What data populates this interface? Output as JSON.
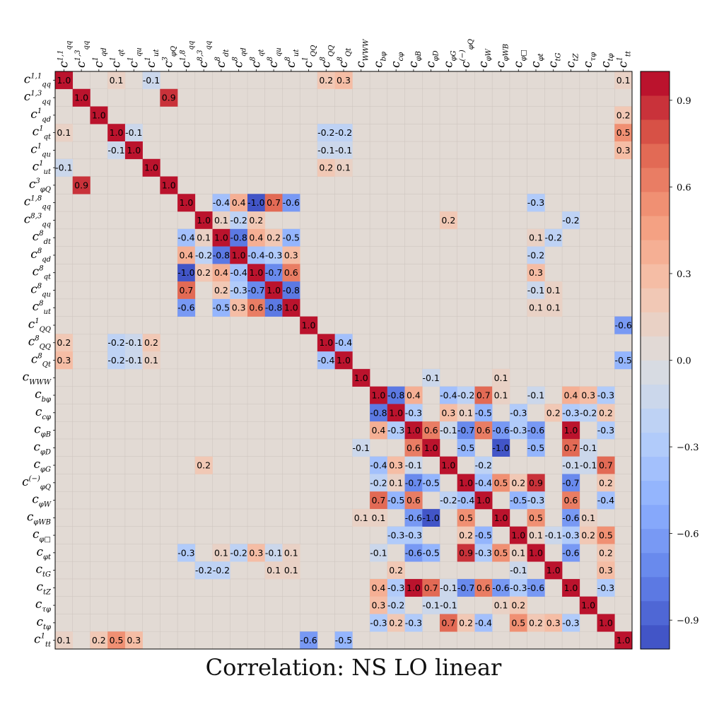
{
  "chart_data": {
    "type": "heatmap",
    "title": "Correlation: NS  LO linear",
    "labels": [
      {
        "base": "c",
        "sub": "qq",
        "sup": "1,1"
      },
      {
        "base": "c",
        "sub": "qq",
        "sup": "1,3"
      },
      {
        "base": "c",
        "sub": "qd",
        "sup": "1"
      },
      {
        "base": "c",
        "sub": "qt",
        "sup": "1"
      },
      {
        "base": "c",
        "sub": "qu",
        "sup": "1"
      },
      {
        "base": "c",
        "sub": "ut",
        "sup": "1"
      },
      {
        "base": "c",
        "sub": "φQ",
        "sup": "3"
      },
      {
        "base": "c",
        "sub": "qq",
        "sup": "1,8"
      },
      {
        "base": "c",
        "sub": "qq",
        "sup": "8,3"
      },
      {
        "base": "c",
        "sub": "dt",
        "sup": "8"
      },
      {
        "base": "c",
        "sub": "qd",
        "sup": "8"
      },
      {
        "base": "c",
        "sub": "qt",
        "sup": "8"
      },
      {
        "base": "c",
        "sub": "qu",
        "sup": "8"
      },
      {
        "base": "c",
        "sub": "ut",
        "sup": "8"
      },
      {
        "base": "c",
        "sub": "QQ",
        "sup": "1"
      },
      {
        "base": "c",
        "sub": "QQ",
        "sup": "8"
      },
      {
        "base": "c",
        "sub": "Qt",
        "sup": "8"
      },
      {
        "base": "c",
        "sub": "WWW",
        "sup": ""
      },
      {
        "base": "c",
        "sub": "bφ",
        "sup": ""
      },
      {
        "base": "c",
        "sub": "cφ",
        "sup": ""
      },
      {
        "base": "c",
        "sub": "φB",
        "sup": ""
      },
      {
        "base": "c",
        "sub": "φD",
        "sup": ""
      },
      {
        "base": "c",
        "sub": "φG",
        "sup": ""
      },
      {
        "base": "c",
        "sub": "φQ",
        "sup": "(−)"
      },
      {
        "base": "c",
        "sub": "φW",
        "sup": ""
      },
      {
        "base": "c",
        "sub": "φWB",
        "sup": ""
      },
      {
        "base": "c",
        "sub": "φ□",
        "sup": ""
      },
      {
        "base": "c",
        "sub": "φt",
        "sup": ""
      },
      {
        "base": "c",
        "sub": "tG",
        "sup": ""
      },
      {
        "base": "c",
        "sub": "tZ",
        "sup": ""
      },
      {
        "base": "c",
        "sub": "τφ",
        "sup": ""
      },
      {
        "base": "c",
        "sub": "tφ",
        "sup": ""
      },
      {
        "base": "c",
        "sub": "tt",
        "sup": "1"
      }
    ],
    "entries": [
      [
        0,
        0,
        1.0
      ],
      [
        0,
        3,
        0.1
      ],
      [
        0,
        5,
        -0.1
      ],
      [
        0,
        15,
        0.2
      ],
      [
        0,
        16,
        0.3
      ],
      [
        0,
        32,
        0.1
      ],
      [
        1,
        1,
        1.0
      ],
      [
        1,
        6,
        0.9
      ],
      [
        2,
        2,
        1.0
      ],
      [
        2,
        32,
        0.2
      ],
      [
        3,
        0,
        0.1
      ],
      [
        3,
        3,
        1.0
      ],
      [
        3,
        4,
        -0.1
      ],
      [
        3,
        15,
        -0.2
      ],
      [
        3,
        16,
        -0.2
      ],
      [
        3,
        32,
        0.5
      ],
      [
        4,
        3,
        -0.1
      ],
      [
        4,
        4,
        1.0
      ],
      [
        4,
        15,
        -0.1
      ],
      [
        4,
        16,
        -0.1
      ],
      [
        4,
        32,
        0.3
      ],
      [
        5,
        0,
        -0.1
      ],
      [
        5,
        5,
        1.0
      ],
      [
        5,
        15,
        0.2
      ],
      [
        5,
        16,
        0.1
      ],
      [
        6,
        1,
        0.9
      ],
      [
        6,
        6,
        1.0
      ],
      [
        7,
        7,
        1.0
      ],
      [
        7,
        9,
        -0.4
      ],
      [
        7,
        10,
        0.4
      ],
      [
        7,
        11,
        -1.0
      ],
      [
        7,
        12,
        0.7
      ],
      [
        7,
        13,
        -0.6
      ],
      [
        7,
        27,
        -0.3
      ],
      [
        8,
        8,
        1.0
      ],
      [
        8,
        9,
        0.1
      ],
      [
        8,
        10,
        -0.2
      ],
      [
        8,
        11,
        0.2
      ],
      [
        8,
        22,
        0.2
      ],
      [
        8,
        29,
        -0.2
      ],
      [
        9,
        7,
        -0.4
      ],
      [
        9,
        8,
        0.1
      ],
      [
        9,
        9,
        1.0
      ],
      [
        9,
        10,
        -0.8
      ],
      [
        9,
        11,
        0.4
      ],
      [
        9,
        12,
        0.2
      ],
      [
        9,
        13,
        -0.5
      ],
      [
        9,
        27,
        0.1
      ],
      [
        9,
        28,
        -0.2
      ],
      [
        10,
        7,
        0.4
      ],
      [
        10,
        8,
        -0.2
      ],
      [
        10,
        9,
        -0.8
      ],
      [
        10,
        10,
        1.0
      ],
      [
        10,
        11,
        -0.4
      ],
      [
        10,
        12,
        -0.3
      ],
      [
        10,
        13,
        0.3
      ],
      [
        10,
        27,
        -0.2
      ],
      [
        11,
        7,
        -1.0
      ],
      [
        11,
        8,
        0.2
      ],
      [
        11,
        9,
        0.4
      ],
      [
        11,
        10,
        -0.4
      ],
      [
        11,
        11,
        1.0
      ],
      [
        11,
        12,
        -0.7
      ],
      [
        11,
        13,
        0.6
      ],
      [
        11,
        27,
        0.3
      ],
      [
        12,
        7,
        0.7
      ],
      [
        12,
        9,
        0.2
      ],
      [
        12,
        10,
        -0.3
      ],
      [
        12,
        11,
        -0.7
      ],
      [
        12,
        12,
        1.0
      ],
      [
        12,
        13,
        -0.8
      ],
      [
        12,
        27,
        -0.1
      ],
      [
        12,
        28,
        0.1
      ],
      [
        13,
        7,
        -0.6
      ],
      [
        13,
        9,
        -0.5
      ],
      [
        13,
        10,
        0.3
      ],
      [
        13,
        11,
        0.6
      ],
      [
        13,
        12,
        -0.8
      ],
      [
        13,
        13,
        1.0
      ],
      [
        13,
        27,
        0.1
      ],
      [
        13,
        28,
        0.1
      ],
      [
        14,
        14,
        1.0
      ],
      [
        14,
        32,
        -0.6
      ],
      [
        15,
        0,
        0.2
      ],
      [
        15,
        3,
        -0.2
      ],
      [
        15,
        4,
        -0.1
      ],
      [
        15,
        5,
        0.2
      ],
      [
        15,
        15,
        1.0
      ],
      [
        15,
        16,
        -0.4
      ],
      [
        16,
        0,
        0.3
      ],
      [
        16,
        3,
        -0.2
      ],
      [
        16,
        4,
        -0.1
      ],
      [
        16,
        5,
        0.1
      ],
      [
        16,
        15,
        -0.4
      ],
      [
        16,
        16,
        1.0
      ],
      [
        16,
        32,
        -0.5
      ],
      [
        17,
        17,
        1.0
      ],
      [
        17,
        21,
        -0.1
      ],
      [
        17,
        25,
        0.1
      ],
      [
        18,
        18,
        1.0
      ],
      [
        18,
        19,
        -0.8
      ],
      [
        18,
        20,
        0.4
      ],
      [
        18,
        22,
        -0.4
      ],
      [
        18,
        23,
        -0.2
      ],
      [
        18,
        24,
        0.7
      ],
      [
        18,
        25,
        0.1
      ],
      [
        18,
        27,
        -0.1
      ],
      [
        18,
        29,
        0.4
      ],
      [
        18,
        30,
        0.3
      ],
      [
        18,
        31,
        -0.3
      ],
      [
        19,
        18,
        -0.8
      ],
      [
        19,
        19,
        1.0
      ],
      [
        19,
        20,
        -0.3
      ],
      [
        19,
        22,
        0.3
      ],
      [
        19,
        23,
        0.1
      ],
      [
        19,
        24,
        -0.5
      ],
      [
        19,
        26,
        -0.3
      ],
      [
        19,
        28,
        0.2
      ],
      [
        19,
        29,
        -0.3
      ],
      [
        19,
        30,
        -0.2
      ],
      [
        19,
        31,
        0.2
      ],
      [
        20,
        18,
        0.4
      ],
      [
        20,
        19,
        -0.3
      ],
      [
        20,
        20,
        1.0
      ],
      [
        20,
        21,
        0.6
      ],
      [
        20,
        22,
        -0.1
      ],
      [
        20,
        23,
        -0.7
      ],
      [
        20,
        24,
        0.6
      ],
      [
        20,
        25,
        -0.6
      ],
      [
        20,
        26,
        -0.3
      ],
      [
        20,
        27,
        -0.6
      ],
      [
        20,
        29,
        1.0
      ],
      [
        20,
        31,
        -0.3
      ],
      [
        21,
        17,
        -0.1
      ],
      [
        21,
        20,
        0.6
      ],
      [
        21,
        21,
        1.0
      ],
      [
        21,
        23,
        -0.5
      ],
      [
        21,
        25,
        -1.0
      ],
      [
        21,
        27,
        -0.5
      ],
      [
        21,
        29,
        0.7
      ],
      [
        21,
        30,
        -0.1
      ],
      [
        22,
        8,
        0.2
      ],
      [
        22,
        18,
        -0.4
      ],
      [
        22,
        19,
        0.3
      ],
      [
        22,
        20,
        -0.1
      ],
      [
        22,
        22,
        1.0
      ],
      [
        22,
        24,
        -0.2
      ],
      [
        22,
        29,
        -0.1
      ],
      [
        22,
        30,
        -0.1
      ],
      [
        22,
        31,
        0.7
      ],
      [
        23,
        18,
        -0.2
      ],
      [
        23,
        19,
        0.1
      ],
      [
        23,
        20,
        -0.7
      ],
      [
        23,
        21,
        -0.5
      ],
      [
        23,
        23,
        1.0
      ],
      [
        23,
        24,
        -0.4
      ],
      [
        23,
        25,
        0.5
      ],
      [
        23,
        26,
        0.2
      ],
      [
        23,
        27,
        0.9
      ],
      [
        23,
        29,
        -0.7
      ],
      [
        23,
        31,
        0.2
      ],
      [
        24,
        18,
        0.7
      ],
      [
        24,
        19,
        -0.5
      ],
      [
        24,
        20,
        0.6
      ],
      [
        24,
        22,
        -0.2
      ],
      [
        24,
        23,
        -0.4
      ],
      [
        24,
        24,
        1.0
      ],
      [
        24,
        26,
        -0.5
      ],
      [
        24,
        27,
        -0.3
      ],
      [
        24,
        29,
        0.6
      ],
      [
        24,
        31,
        -0.4
      ],
      [
        25,
        17,
        0.1
      ],
      [
        25,
        18,
        0.1
      ],
      [
        25,
        20,
        -0.6
      ],
      [
        25,
        21,
        -1.0
      ],
      [
        25,
        23,
        0.5
      ],
      [
        25,
        25,
        1.0
      ],
      [
        25,
        27,
        0.5
      ],
      [
        25,
        29,
        -0.6
      ],
      [
        25,
        30,
        0.1
      ],
      [
        26,
        19,
        -0.3
      ],
      [
        26,
        20,
        -0.3
      ],
      [
        26,
        23,
        0.2
      ],
      [
        26,
        24,
        -0.5
      ],
      [
        26,
        26,
        1.0
      ],
      [
        26,
        27,
        0.1
      ],
      [
        26,
        28,
        -0.1
      ],
      [
        26,
        29,
        -0.3
      ],
      [
        26,
        30,
        0.2
      ],
      [
        26,
        31,
        0.5
      ],
      [
        27,
        7,
        -0.3
      ],
      [
        27,
        9,
        0.1
      ],
      [
        27,
        10,
        -0.2
      ],
      [
        27,
        11,
        0.3
      ],
      [
        27,
        12,
        -0.1
      ],
      [
        27,
        13,
        0.1
      ],
      [
        27,
        18,
        -0.1
      ],
      [
        27,
        20,
        -0.6
      ],
      [
        27,
        21,
        -0.5
      ],
      [
        27,
        23,
        0.9
      ],
      [
        27,
        24,
        -0.3
      ],
      [
        27,
        25,
        0.5
      ],
      [
        27,
        26,
        0.1
      ],
      [
        27,
        27,
        1.0
      ],
      [
        27,
        29,
        -0.6
      ],
      [
        27,
        31,
        0.2
      ],
      [
        28,
        8,
        -0.2
      ],
      [
        28,
        9,
        -0.2
      ],
      [
        28,
        12,
        0.1
      ],
      [
        28,
        13,
        0.1
      ],
      [
        28,
        19,
        0.2
      ],
      [
        28,
        26,
        -0.1
      ],
      [
        28,
        28,
        1.0
      ],
      [
        28,
        31,
        0.3
      ],
      [
        29,
        18,
        0.4
      ],
      [
        29,
        19,
        -0.3
      ],
      [
        29,
        20,
        1.0
      ],
      [
        29,
        21,
        0.7
      ],
      [
        29,
        22,
        -0.1
      ],
      [
        29,
        23,
        -0.7
      ],
      [
        29,
        24,
        0.6
      ],
      [
        29,
        25,
        -0.6
      ],
      [
        29,
        26,
        -0.3
      ],
      [
        29,
        27,
        -0.6
      ],
      [
        29,
        29,
        1.0
      ],
      [
        29,
        31,
        -0.3
      ],
      [
        30,
        18,
        0.3
      ],
      [
        30,
        19,
        -0.2
      ],
      [
        30,
        21,
        -0.1
      ],
      [
        30,
        22,
        -0.1
      ],
      [
        30,
        25,
        0.1
      ],
      [
        30,
        26,
        0.2
      ],
      [
        30,
        30,
        1.0
      ],
      [
        31,
        18,
        -0.3
      ],
      [
        31,
        19,
        0.2
      ],
      [
        31,
        20,
        -0.3
      ],
      [
        31,
        22,
        0.7
      ],
      [
        31,
        23,
        0.2
      ],
      [
        31,
        24,
        -0.4
      ],
      [
        31,
        26,
        0.5
      ],
      [
        31,
        27,
        0.2
      ],
      [
        31,
        28,
        0.3
      ],
      [
        31,
        29,
        -0.3
      ],
      [
        31,
        31,
        1.0
      ],
      [
        32,
        0,
        0.1
      ],
      [
        32,
        2,
        0.2
      ],
      [
        32,
        3,
        0.5
      ],
      [
        32,
        4,
        0.3
      ],
      [
        32,
        14,
        -0.6
      ],
      [
        32,
        16,
        -0.5
      ],
      [
        32,
        32,
        1.0
      ]
    ],
    "colorbar": {
      "range": [
        -1.0,
        1.0
      ],
      "ticks": [
        0.9,
        0.6,
        0.3,
        0.0,
        -0.3,
        -0.6,
        -0.9
      ],
      "tick_labels": [
        "0.9",
        "0.6",
        "0.3",
        "0.0",
        "−0.3",
        "−0.6",
        "−0.9"
      ],
      "bins": 24,
      "colormap": "coolwarm"
    },
    "grid": true,
    "legend": "right"
  }
}
